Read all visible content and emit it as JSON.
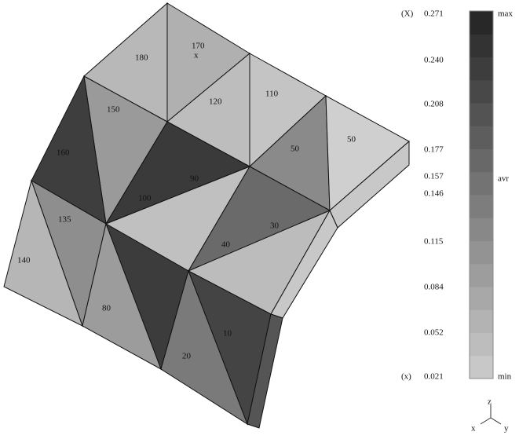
{
  "elements": {
    "labels": [
      "180",
      "170",
      "x",
      "120",
      "110",
      "150",
      "160",
      "90",
      "50",
      "50",
      "100",
      "30",
      "135",
      "40",
      "140",
      "80",
      "20",
      "10"
    ]
  },
  "legend": {
    "max_marker": "(X)",
    "min_marker": "(x)",
    "values": [
      "0.271",
      "0.240",
      "0.208",
      "0.177",
      "0.157",
      "0.146",
      "0.115",
      "0.084",
      "0.052",
      "0.021"
    ],
    "max": "max",
    "avr": "avr",
    "min": "min"
  },
  "axes": {
    "z": "z",
    "x": "x",
    "y": "y"
  }
}
